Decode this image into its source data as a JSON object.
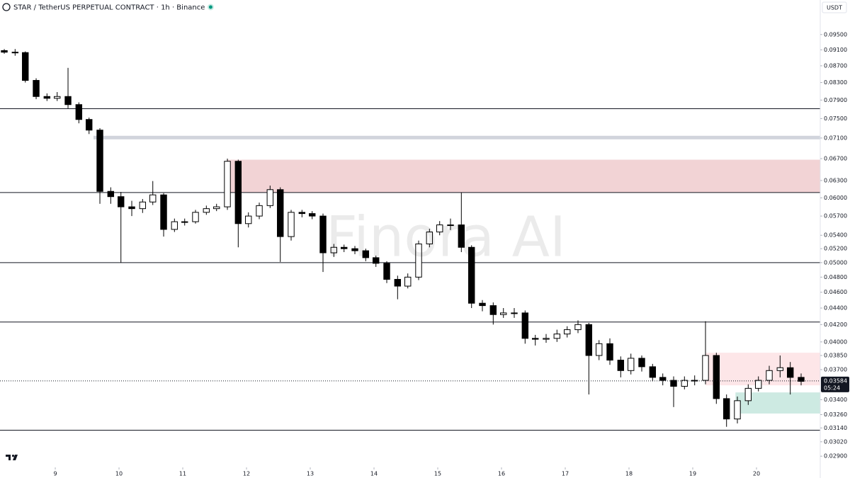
{
  "chart_data": {
    "type": "candlestick",
    "title": "STAR / TetherUS PERPETUAL CONTRACT · 1h · Binance",
    "currency": "USDT",
    "watermark": "Finora AI",
    "countdown": "05:24",
    "last_price": 0.03584,
    "log_scale": true,
    "up_color": "#ffffff",
    "down_color": "#000000",
    "wick_color": "#000000",
    "x": [
      8.2,
      8.37,
      8.53,
      8.7,
      8.87,
      9.03,
      9.2,
      9.37,
      9.53,
      9.7,
      9.87,
      10.03,
      10.2,
      10.37,
      10.53,
      10.7,
      10.87,
      11.03,
      11.2,
      11.37,
      11.53,
      11.7,
      11.87,
      12.03,
      12.2,
      12.37,
      12.53,
      12.7,
      12.87,
      13.03,
      13.2,
      13.37,
      13.53,
      13.7,
      13.87,
      14.03,
      14.2,
      14.37,
      14.53,
      14.7,
      14.87,
      15.03,
      15.2,
      15.37,
      15.53,
      15.7,
      15.87,
      16.03,
      16.2,
      16.37,
      16.53,
      16.7,
      16.87,
      17.03,
      17.2,
      17.37,
      17.53,
      17.7,
      17.87,
      18.03,
      18.2,
      18.37,
      18.53,
      18.7,
      18.87,
      19.03,
      19.2,
      19.37,
      19.53,
      19.7,
      19.87,
      20.03,
      20.2,
      20.37,
      20.53,
      20.7
    ],
    "open": [
      0.0908,
      0.0904,
      0.0903,
      0.0835,
      0.0798,
      0.0794,
      0.0798,
      0.078,
      0.0748,
      0.0726,
      0.0611,
      0.0602,
      0.0585,
      0.0582,
      0.0593,
      0.0605,
      0.0549,
      0.0561,
      0.0561,
      0.0576,
      0.0582,
      0.0585,
      0.0665,
      0.0558,
      0.057,
      0.0587,
      0.0614,
      0.0538,
      0.0576,
      0.0574,
      0.057,
      0.0514,
      0.0522,
      0.052,
      0.0517,
      0.0507,
      0.0499,
      0.0477,
      0.0468,
      0.048,
      0.0527,
      0.0545,
      0.0556,
      0.0556,
      0.0522,
      0.0446,
      0.0443,
      0.0432,
      0.0434,
      0.0434,
      0.0404,
      0.0403,
      0.0404,
      0.0409,
      0.0414,
      0.042,
      0.0385,
      0.0398,
      0.038,
      0.0369,
      0.0382,
      0.0373,
      0.0362,
      0.0359,
      0.0353,
      0.0359,
      0.0359,
      0.0385,
      0.0341,
      0.0322,
      0.0339,
      0.0351,
      0.0359,
      0.0369,
      0.0372,
      0.0362
    ],
    "high": [
      0.0912,
      0.0912,
      0.0906,
      0.084,
      0.0805,
      0.0808,
      0.0865,
      0.0785,
      0.0752,
      0.073,
      0.0618,
      0.061,
      0.0595,
      0.0598,
      0.0629,
      0.0608,
      0.0566,
      0.0566,
      0.058,
      0.0587,
      0.059,
      0.067,
      0.0668,
      0.0576,
      0.0592,
      0.0621,
      0.0618,
      0.058,
      0.058,
      0.0578,
      0.0574,
      0.0527,
      0.0526,
      0.0524,
      0.052,
      0.051,
      0.0502,
      0.0482,
      0.0485,
      0.0532,
      0.055,
      0.0562,
      0.0566,
      0.0609,
      0.0525,
      0.045,
      0.0447,
      0.044,
      0.044,
      0.0437,
      0.0408,
      0.0409,
      0.0414,
      0.0418,
      0.0425,
      0.0422,
      0.0402,
      0.0404,
      0.0384,
      0.0387,
      0.0385,
      0.0376,
      0.0366,
      0.0363,
      0.0363,
      0.0364,
      0.0424,
      0.0388,
      0.0345,
      0.0343,
      0.0355,
      0.0363,
      0.0374,
      0.0385,
      0.0378,
      0.0366
    ],
    "low": [
      0.09,
      0.0895,
      0.083,
      0.0792,
      0.0788,
      0.0788,
      0.0772,
      0.074,
      0.0718,
      0.059,
      0.059,
      0.05,
      0.057,
      0.0575,
      0.0588,
      0.0538,
      0.0545,
      0.0555,
      0.0558,
      0.0572,
      0.0578,
      0.058,
      0.0522,
      0.0552,
      0.0565,
      0.0583,
      0.0501,
      0.0532,
      0.0568,
      0.0565,
      0.0487,
      0.0508,
      0.0515,
      0.0512,
      0.0502,
      0.0494,
      0.0472,
      0.0451,
      0.0465,
      0.0476,
      0.0522,
      0.054,
      0.0548,
      0.0515,
      0.044,
      0.0436,
      0.042,
      0.0428,
      0.0428,
      0.0398,
      0.0396,
      0.0399,
      0.04,
      0.0405,
      0.041,
      0.0345,
      0.038,
      0.0375,
      0.0362,
      0.0365,
      0.0368,
      0.0358,
      0.0354,
      0.0333,
      0.035,
      0.0354,
      0.0355,
      0.0336,
      0.0315,
      0.0318,
      0.0335,
      0.0348,
      0.0355,
      0.0362,
      0.0345,
      0.0354
    ],
    "close": [
      0.0904,
      0.0903,
      0.0835,
      0.0798,
      0.0794,
      0.0798,
      0.078,
      0.0748,
      0.0726,
      0.0611,
      0.0602,
      0.0585,
      0.0582,
      0.0593,
      0.0605,
      0.0549,
      0.0561,
      0.0561,
      0.0576,
      0.0582,
      0.0585,
      0.0665,
      0.0558,
      0.057,
      0.0587,
      0.0614,
      0.0538,
      0.0576,
      0.0574,
      0.057,
      0.0514,
      0.0522,
      0.052,
      0.0517,
      0.0507,
      0.0499,
      0.0477,
      0.0468,
      0.048,
      0.0527,
      0.0545,
      0.0556,
      0.0556,
      0.0522,
      0.0446,
      0.0443,
      0.0432,
      0.0434,
      0.0434,
      0.0404,
      0.0403,
      0.0404,
      0.0409,
      0.0414,
      0.042,
      0.0385,
      0.0398,
      0.038,
      0.0369,
      0.0382,
      0.0373,
      0.0362,
      0.0359,
      0.0353,
      0.0359,
      0.0359,
      0.0385,
      0.0341,
      0.0322,
      0.0339,
      0.0351,
      0.0359,
      0.0369,
      0.0372,
      0.0362,
      0.0358
    ],
    "xlim": [
      8.133,
      21
    ],
    "xticks": [
      9,
      10,
      11,
      12,
      13,
      14,
      15,
      16,
      17,
      18,
      19,
      20
    ],
    "ylim": [
      0.0281,
      0.1047
    ],
    "yticks": [
      {
        "value": 0.095,
        "label": "0.09500"
      },
      {
        "value": 0.091,
        "label": "0.09100"
      },
      {
        "value": 0.087,
        "label": "0.08700"
      },
      {
        "value": 0.083,
        "label": "0.08300"
      },
      {
        "value": 0.079,
        "label": "0.07900"
      },
      {
        "value": 0.075,
        "label": "0.07500"
      },
      {
        "value": 0.071,
        "label": "0.07100"
      },
      {
        "value": 0.067,
        "label": "0.06700"
      },
      {
        "value": 0.063,
        "label": "0.06300"
      },
      {
        "value": 0.06,
        "label": "0.06000"
      },
      {
        "value": 0.057,
        "label": "0.05700"
      },
      {
        "value": 0.054,
        "label": "0.05400"
      },
      {
        "value": 0.052,
        "label": "0.05200"
      },
      {
        "value": 0.05,
        "label": "0.05000"
      },
      {
        "value": 0.048,
        "label": "0.04800"
      },
      {
        "value": 0.046,
        "label": "0.04600"
      },
      {
        "value": 0.044,
        "label": "0.04400"
      },
      {
        "value": 0.042,
        "label": "0.04200"
      },
      {
        "value": 0.04,
        "label": "0.04000"
      },
      {
        "value": 0.0385,
        "label": "0.03850"
      },
      {
        "value": 0.037,
        "label": "0.03700"
      },
      {
        "value": 0.034,
        "label": "0.03400"
      },
      {
        "value": 0.0326,
        "label": "0.03260"
      },
      {
        "value": 0.0314,
        "label": "0.03140"
      },
      {
        "value": 0.0302,
        "label": "0.03020"
      },
      {
        "value": 0.029,
        "label": "0.02900"
      }
    ],
    "levels": [
      0.0771,
      0.0609,
      0.05,
      0.0423,
      0.0312
    ],
    "band": {
      "value": 0.0711,
      "start": 9.6,
      "color": "#d1d4dc"
    },
    "zones": [
      {
        "start": 11.7,
        "top": 0.0668,
        "bottom": 0.0609,
        "color": "#f2d3d5"
      },
      {
        "start": 19.2,
        "top": 0.0388,
        "bottom": 0.0354,
        "color": "#fde6e8"
      },
      {
        "start": 19.67,
        "top": 0.0347,
        "bottom": 0.0327,
        "color": "#cdeae2"
      }
    ]
  }
}
